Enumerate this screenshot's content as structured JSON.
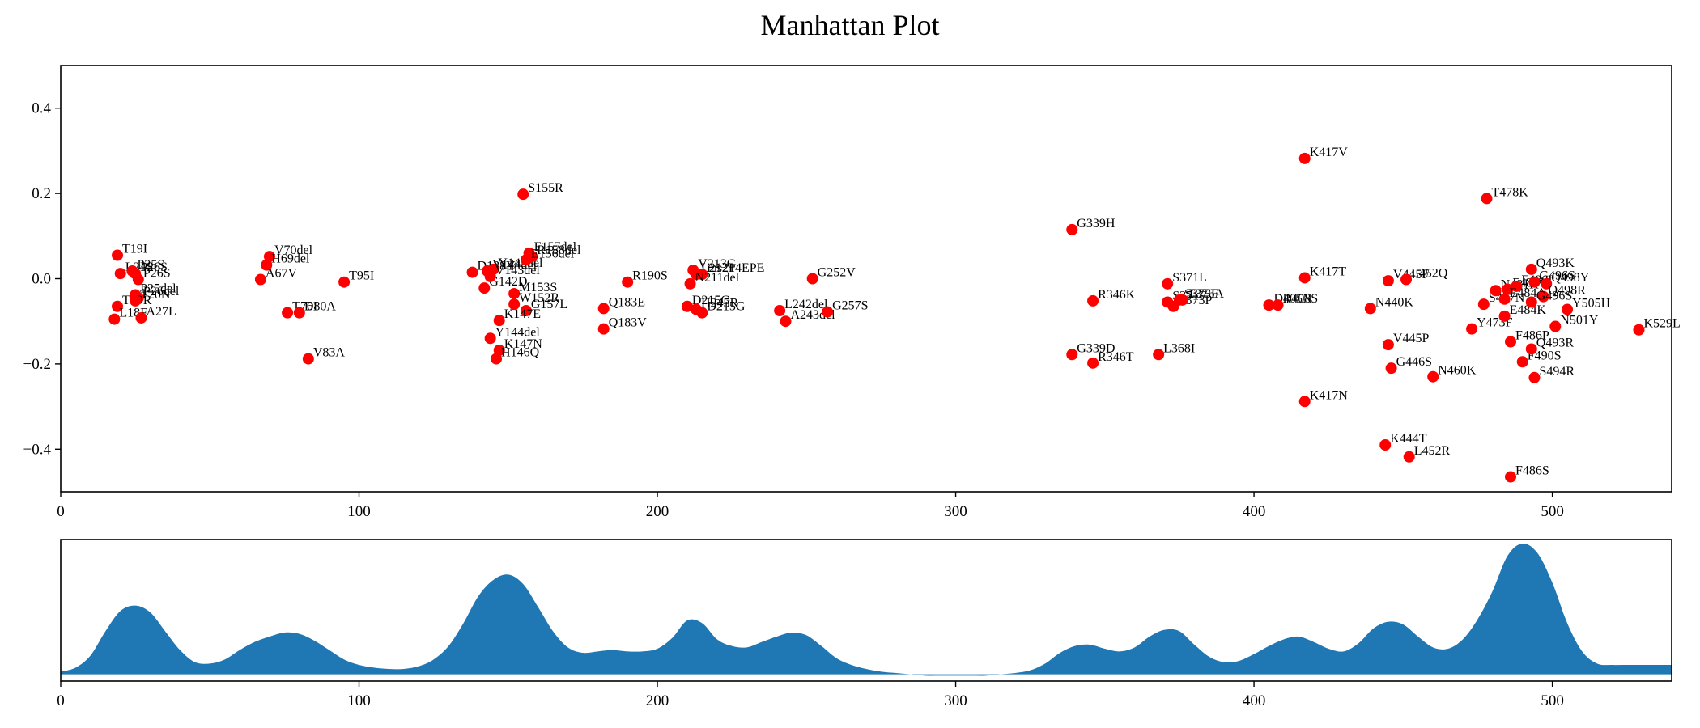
{
  "chart_data": [
    {
      "type": "scatter",
      "title": "Manhattan Plot",
      "xlabel": "",
      "ylabel": "",
      "xlim": [
        0,
        540
      ],
      "ylim": [
        -0.5,
        0.5
      ],
      "xticks": [
        0,
        100,
        200,
        300,
        400,
        500
      ],
      "yticks": [
        -0.4,
        -0.2,
        0.0,
        0.2,
        0.4
      ],
      "ytick_labels": [
        "−0.4",
        "−0.2",
        "0.0",
        "0.2",
        "0.4"
      ],
      "grid": false,
      "marker_color": "#ff0000",
      "points": [
        {
          "label": "T19I",
          "x": 19,
          "y": 0.055
        },
        {
          "label": "L24S",
          "x": 20,
          "y": 0.012
        },
        {
          "label": "P25S",
          "x": 24,
          "y": 0.018
        },
        {
          "label": "P26S",
          "x": 25,
          "y": 0.012
        },
        {
          "label": "P26S",
          "x": 26,
          "y": -0.002
        },
        {
          "label": "P25del",
          "x": 25,
          "y": -0.038
        },
        {
          "label": "P26del",
          "x": 26,
          "y": -0.045
        },
        {
          "label": "T19R",
          "x": 19,
          "y": -0.065
        },
        {
          "label": "T20N",
          "x": 25,
          "y": -0.052
        },
        {
          "label": "L18F",
          "x": 18,
          "y": -0.095
        },
        {
          "label": "A27L",
          "x": 27,
          "y": -0.092
        },
        {
          "label": "V70del",
          "x": 70,
          "y": 0.052
        },
        {
          "label": "H69del",
          "x": 69,
          "y": 0.032
        },
        {
          "label": "A67V",
          "x": 67,
          "y": -0.002
        },
        {
          "label": "T76I",
          "x": 76,
          "y": -0.08
        },
        {
          "label": "D80A",
          "x": 80,
          "y": -0.08
        },
        {
          "label": "V83A",
          "x": 83,
          "y": -0.188
        },
        {
          "label": "T95I",
          "x": 95,
          "y": -0.008
        },
        {
          "label": "D138Y",
          "x": 138,
          "y": 0.015
        },
        {
          "label": "Y144del",
          "x": 143,
          "y": 0.018
        },
        {
          "label": "Y145del",
          "x": 145,
          "y": 0.022
        },
        {
          "label": "G142D",
          "x": 142,
          "y": -0.022
        },
        {
          "label": "V143del",
          "x": 144,
          "y": 0.005
        },
        {
          "label": "M153S",
          "x": 152,
          "y": -0.035
        },
        {
          "label": "W152R",
          "x": 152,
          "y": -0.06
        },
        {
          "label": "G157L",
          "x": 156,
          "y": -0.075
        },
        {
          "label": "K147E",
          "x": 147,
          "y": -0.098
        },
        {
          "label": "Y144del",
          "x": 144,
          "y": -0.14
        },
        {
          "label": "K147N",
          "x": 147,
          "y": -0.168
        },
        {
          "label": "H146Q",
          "x": 146,
          "y": -0.188
        },
        {
          "label": "F157del",
          "x": 157,
          "y": 0.06
        },
        {
          "label": "R158del",
          "x": 158,
          "y": 0.052
        },
        {
          "label": "E156del",
          "x": 156,
          "y": 0.044
        },
        {
          "label": "S155R",
          "x": 155,
          "y": 0.198
        },
        {
          "label": "Q183E",
          "x": 182,
          "y": -0.07
        },
        {
          "label": "Q183V",
          "x": 182,
          "y": -0.118
        },
        {
          "label": "R190S",
          "x": 190,
          "y": -0.008
        },
        {
          "label": "V213G",
          "x": 212,
          "y": 0.02
        },
        {
          "label": "L212I",
          "x": 213,
          "y": 0.01
        },
        {
          "label": "ins214EPE",
          "x": 215,
          "y": 0.01
        },
        {
          "label": "N211del",
          "x": 211,
          "y": -0.012
        },
        {
          "label": "D215G",
          "x": 210,
          "y": -0.065
        },
        {
          "label": "H245R",
          "x": 213,
          "y": -0.072
        },
        {
          "label": "D215G",
          "x": 215,
          "y": -0.08
        },
        {
          "label": "L242del",
          "x": 241,
          "y": -0.075
        },
        {
          "label": "A243del",
          "x": 243,
          "y": -0.1
        },
        {
          "label": "G257S",
          "x": 257,
          "y": -0.078
        },
        {
          "label": "G252V",
          "x": 252,
          "y": 0.0
        },
        {
          "label": "G339H",
          "x": 339,
          "y": 0.115
        },
        {
          "label": "R346K",
          "x": 346,
          "y": -0.052
        },
        {
          "label": "G339D",
          "x": 339,
          "y": -0.178
        },
        {
          "label": "R346T",
          "x": 346,
          "y": -0.198
        },
        {
          "label": "L368I",
          "x": 368,
          "y": -0.178
        },
        {
          "label": "S371L",
          "x": 371,
          "y": -0.012
        },
        {
          "label": "S371F",
          "x": 371,
          "y": -0.055
        },
        {
          "label": "S373P",
          "x": 373,
          "y": -0.065
        },
        {
          "label": "S375F",
          "x": 375,
          "y": -0.05
        },
        {
          "label": "T376A",
          "x": 376,
          "y": -0.05
        },
        {
          "label": "D405N",
          "x": 405,
          "y": -0.062
        },
        {
          "label": "R408S",
          "x": 408,
          "y": -0.062
        },
        {
          "label": "K417V",
          "x": 417,
          "y": 0.282
        },
        {
          "label": "K417T",
          "x": 417,
          "y": 0.002
        },
        {
          "label": "K417N",
          "x": 417,
          "y": -0.288
        },
        {
          "label": "N440K",
          "x": 439,
          "y": -0.07
        },
        {
          "label": "K444T",
          "x": 444,
          "y": -0.39
        },
        {
          "label": "V445F",
          "x": 445,
          "y": -0.005
        },
        {
          "label": "L452Q",
          "x": 451,
          "y": -0.002
        },
        {
          "label": "V445P",
          "x": 445,
          "y": -0.155
        },
        {
          "label": "G446S",
          "x": 446,
          "y": -0.21
        },
        {
          "label": "L452R",
          "x": 452,
          "y": -0.418
        },
        {
          "label": "N460K",
          "x": 460,
          "y": -0.23
        },
        {
          "label": "Y473F",
          "x": 473,
          "y": -0.118
        },
        {
          "label": "T478K",
          "x": 478,
          "y": 0.188
        },
        {
          "label": "S477N",
          "x": 477,
          "y": -0.06
        },
        {
          "label": "N481K",
          "x": 481,
          "y": -0.028
        },
        {
          "label": "F486V",
          "x": 485,
          "y": -0.025
        },
        {
          "label": "F486I",
          "x": 488,
          "y": -0.018
        },
        {
          "label": "E484A",
          "x": 484,
          "y": -0.048
        },
        {
          "label": "E484K",
          "x": 484,
          "y": -0.088
        },
        {
          "label": "F486P",
          "x": 486,
          "y": -0.148
        },
        {
          "label": "F486S",
          "x": 486,
          "y": -0.465
        },
        {
          "label": "F490S",
          "x": 490,
          "y": -0.195
        },
        {
          "label": "Q493K",
          "x": 493,
          "y": 0.022
        },
        {
          "label": "G496S",
          "x": 494,
          "y": -0.008
        },
        {
          "label": "Q498Y",
          "x": 498,
          "y": -0.012
        },
        {
          "label": "Q493R",
          "x": 493,
          "y": -0.165
        },
        {
          "label": "Q498R",
          "x": 497,
          "y": -0.042
        },
        {
          "label": "G496S",
          "x": 493,
          "y": -0.055
        },
        {
          "label": "S494R",
          "x": 494,
          "y": -0.232
        },
        {
          "label": "N501Y",
          "x": 501,
          "y": -0.112
        },
        {
          "label": "Y505H",
          "x": 505,
          "y": -0.072
        },
        {
          "label": "K529L",
          "x": 529,
          "y": -0.12
        }
      ]
    },
    {
      "type": "area",
      "title": "",
      "xlabel": "",
      "ylabel": "",
      "xlim": [
        0,
        540
      ],
      "xticks": [
        0,
        100,
        200,
        300,
        400,
        500
      ],
      "color": "#1f77b4",
      "x": [
        0,
        5,
        10,
        15,
        20,
        25,
        30,
        35,
        40,
        45,
        50,
        55,
        60,
        65,
        70,
        75,
        80,
        85,
        90,
        95,
        100,
        105,
        110,
        115,
        120,
        125,
        130,
        135,
        140,
        145,
        150,
        155,
        160,
        165,
        170,
        175,
        180,
        185,
        190,
        195,
        200,
        205,
        210,
        215,
        220,
        225,
        230,
        235,
        240,
        245,
        250,
        255,
        260,
        265,
        270,
        275,
        280,
        285,
        290,
        295,
        300,
        305,
        310,
        315,
        320,
        325,
        330,
        335,
        340,
        345,
        350,
        355,
        360,
        365,
        370,
        375,
        380,
        385,
        390,
        395,
        400,
        405,
        410,
        415,
        420,
        425,
        430,
        435,
        440,
        445,
        450,
        455,
        460,
        465,
        470,
        475,
        480,
        485,
        490,
        495,
        500,
        505,
        510,
        515,
        520,
        525,
        530,
        535,
        540
      ],
      "y": [
        0.02,
        0.05,
        0.14,
        0.32,
        0.47,
        0.51,
        0.46,
        0.32,
        0.18,
        0.09,
        0.08,
        0.11,
        0.18,
        0.24,
        0.28,
        0.31,
        0.3,
        0.25,
        0.18,
        0.11,
        0.07,
        0.05,
        0.04,
        0.04,
        0.06,
        0.11,
        0.21,
        0.38,
        0.58,
        0.7,
        0.74,
        0.67,
        0.5,
        0.32,
        0.2,
        0.16,
        0.17,
        0.18,
        0.17,
        0.17,
        0.19,
        0.27,
        0.4,
        0.38,
        0.26,
        0.21,
        0.2,
        0.24,
        0.28,
        0.31,
        0.29,
        0.21,
        0.12,
        0.07,
        0.04,
        0.02,
        0.01,
        0.0,
        -0.01,
        -0.01,
        -0.01,
        -0.01,
        -0.01,
        0.0,
        0.01,
        0.03,
        0.08,
        0.16,
        0.21,
        0.22,
        0.19,
        0.17,
        0.2,
        0.28,
        0.33,
        0.32,
        0.22,
        0.13,
        0.09,
        0.1,
        0.15,
        0.21,
        0.26,
        0.28,
        0.24,
        0.19,
        0.17,
        0.23,
        0.34,
        0.39,
        0.37,
        0.28,
        0.2,
        0.19,
        0.26,
        0.41,
        0.62,
        0.88,
        0.97,
        0.9,
        0.68,
        0.38,
        0.17,
        0.08,
        0.07,
        0.07,
        0.07,
        0.07,
        0.07
      ],
      "ylim": [
        -0.05,
        1.0
      ]
    }
  ]
}
